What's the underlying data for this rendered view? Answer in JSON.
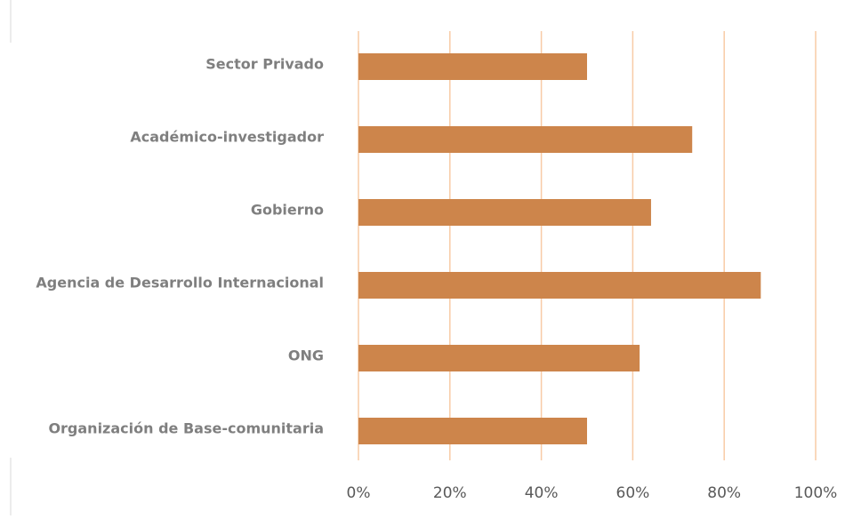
{
  "chart_data": {
    "type": "bar",
    "orientation": "horizontal",
    "title": "",
    "xlabel": "",
    "ylabel": "",
    "categories": [
      "Sector Privado",
      "Académico-investigador",
      "Gobierno",
      "Agencia de Desarrollo Internacional",
      "ONG",
      "Organización de Base-comunitaria"
    ],
    "values": [
      50,
      73,
      64,
      88,
      61.5,
      50
    ],
    "xlim": [
      0,
      100
    ],
    "ticks": [
      "0%",
      "20%",
      "40%",
      "60%",
      "80%",
      "100%"
    ],
    "grid": true,
    "legend": "none"
  },
  "colors": {
    "bar": "#cd854b",
    "grid": "#f8cba6",
    "category_text": "#7f7f7f",
    "tick_text": "#595959",
    "frame": "#d9d9d9"
  }
}
